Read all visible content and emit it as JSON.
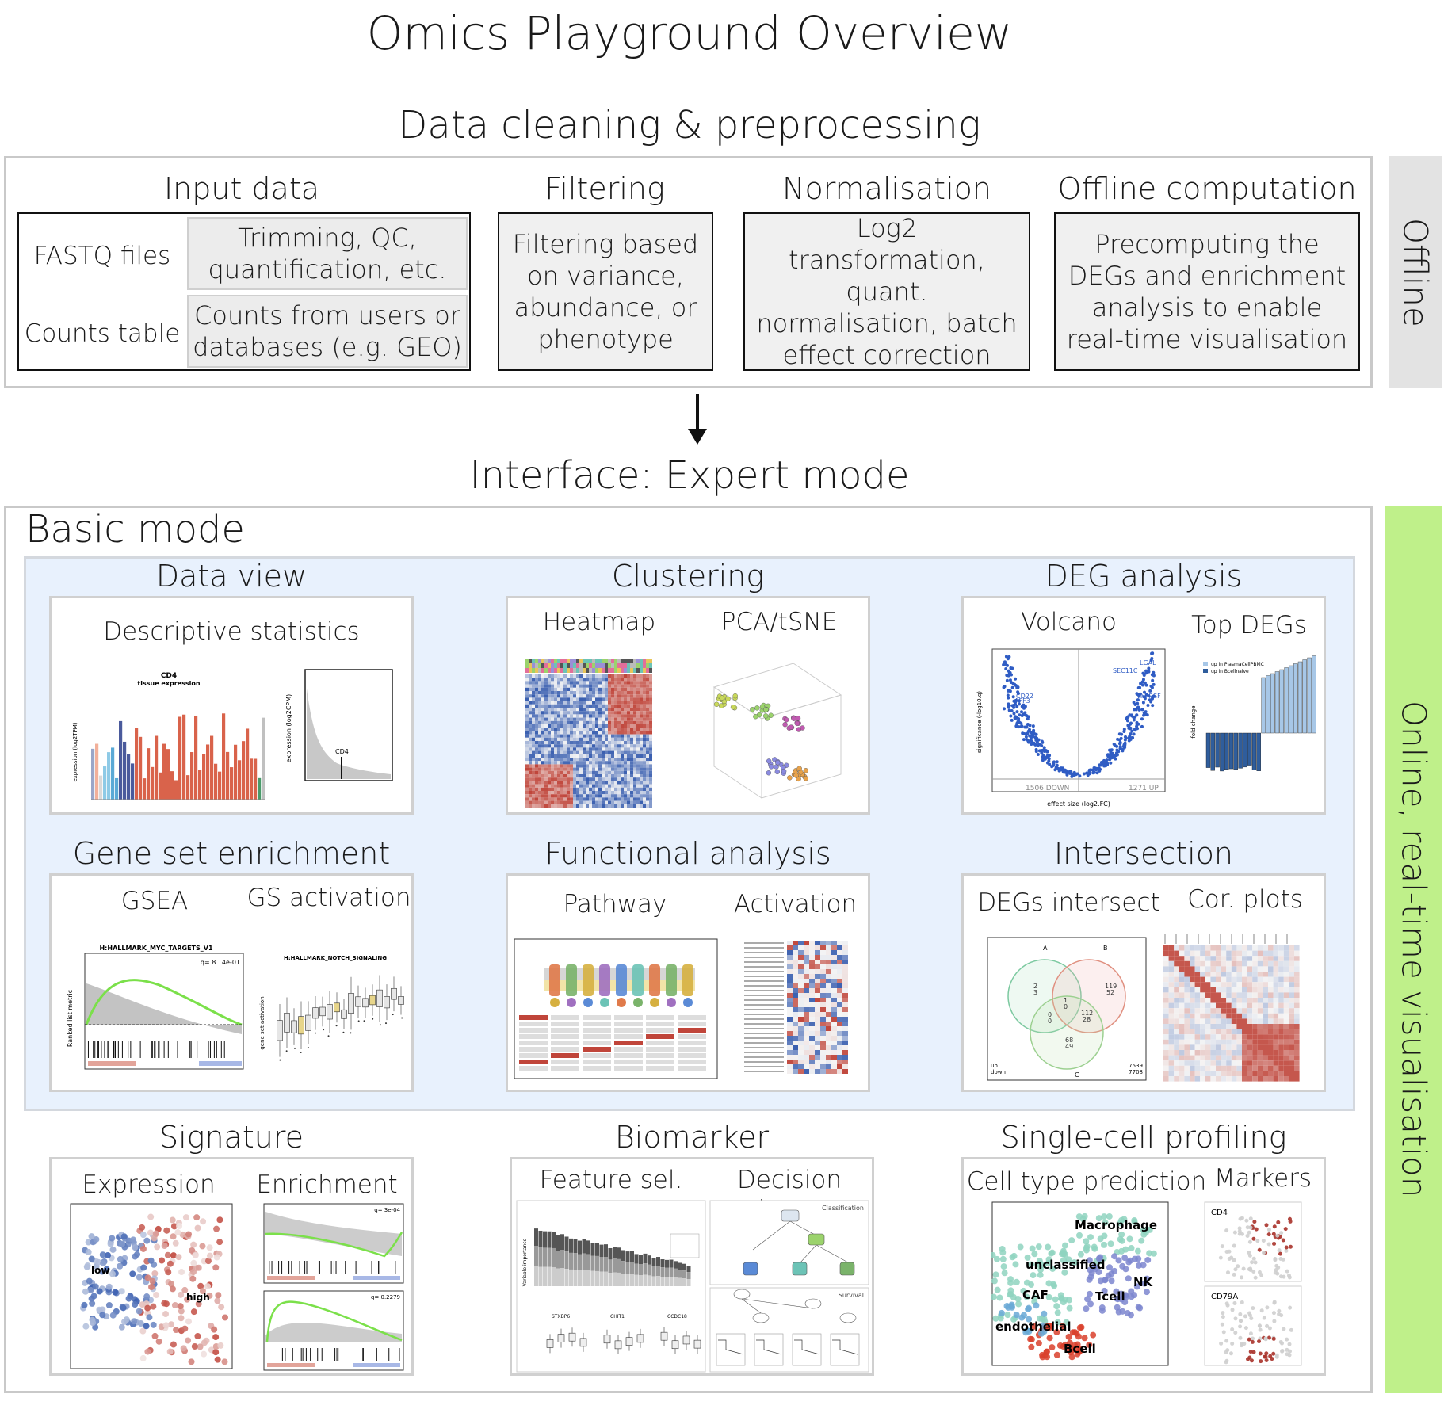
{
  "title": "Omics Playground Overview",
  "preprocessing": {
    "heading": "Data cleaning & preprocessing",
    "side_label": "Offline",
    "input_data": {
      "heading": "Input data",
      "fastq": {
        "label": "FASTQ files",
        "desc": "Trimming, QC, quantification, etc."
      },
      "counts": {
        "label": "Counts table",
        "desc": "Counts from users or databases (e.g. GEO)"
      }
    },
    "filtering": {
      "heading": "Filtering",
      "desc": "Filtering based on variance, abundance, or phenotype"
    },
    "normalisation": {
      "heading": "Normalisation",
      "desc": "Log2 transformation, quant. normalisation, batch effect correction"
    },
    "offline_computation": {
      "heading": "Offline computation",
      "desc": "Precomputing the DEGs and enrichment analysis to enable real-time visualisation"
    }
  },
  "interface": {
    "heading": "Interface: Expert mode",
    "side_label": "Online, real-time visualisation",
    "basic_mode": "Basic mode",
    "modules": {
      "data_view": {
        "heading": "Data view",
        "sub1": "Descriptive statistics",
        "bar_title": "CD4",
        "bar_subtitle": "tissue expression",
        "bar_ylabel": "expression (log2TPM)",
        "dist_ylabel": "expression (log2CPM)",
        "dist_label": "CD4"
      },
      "clustering": {
        "heading": "Clustering",
        "sub1": "Heatmap",
        "sub2": "PCA/tSNE"
      },
      "deg": {
        "heading": "DEG analysis",
        "sub1": "Volcano",
        "sub2": "Top DEGs",
        "volcano_xlabel": "effect size (log2.FC)",
        "volcano_ylabel": "significance (-log10.q)",
        "down_count": "1506 DOWN",
        "up_count": "1271 UP",
        "legend1": "up in PlasmaCellPBMC",
        "legend2": "up in Bcellnaive",
        "bar_ylabel": "fold change"
      },
      "gse": {
        "heading": "Gene set enrichment",
        "sub1": "GSEA",
        "sub2": "GS activation",
        "gsea_title": "H:HALLMARK_MYC_TARGETS_V1",
        "gsea_q": "q= 8.14e-01",
        "gsea_ylabel": "Ranked list metric",
        "act_title": "H:HALLMARK_NOTCH_SIGNALING",
        "act_ylabel": "gene set activation"
      },
      "functional": {
        "heading": "Functional analysis",
        "sub1": "Pathway",
        "sub2": "Activation"
      },
      "intersection": {
        "heading": "Intersection",
        "sub1": "DEGs intersect",
        "sub2": "Cor. plots",
        "venn_a": "A",
        "venn_b": "B",
        "venn_c": "C",
        "venn_footer1": "up",
        "venn_footer2": "down",
        "venn_total1": "7539",
        "venn_total2": "7708"
      },
      "signature": {
        "heading": "Signature",
        "sub1": "Expression",
        "sub2": "Enrichment",
        "low": "low",
        "high": "high",
        "q1": "q= 3e-04",
        "q2": "q= 0.2279"
      },
      "biomarker": {
        "heading": "Biomarker",
        "sub1": "Feature sel.",
        "sub2": "Decision trees",
        "classification": "Classification",
        "survival": "Survival",
        "ylabel": "Variable importance",
        "gene1": "STXBP6",
        "gene2": "CHIT1",
        "gene3": "CCDC18"
      },
      "singlecell": {
        "heading": "Single-cell profiling",
        "sub1": "Cell type prediction",
        "sub2": "Markers",
        "labels": [
          "Macrophage",
          "unclassified",
          "NK",
          "CAF",
          "Tcell",
          "endothelial",
          "Bcell"
        ],
        "marker1": "CD4",
        "marker2": "CD79A"
      }
    }
  },
  "colors": {
    "offline_band": "#e3e3e3",
    "online_band": "#bff08a",
    "basic_bg": "#e8f1fd",
    "blue": "#3a5fb0",
    "red": "#c0453a"
  }
}
